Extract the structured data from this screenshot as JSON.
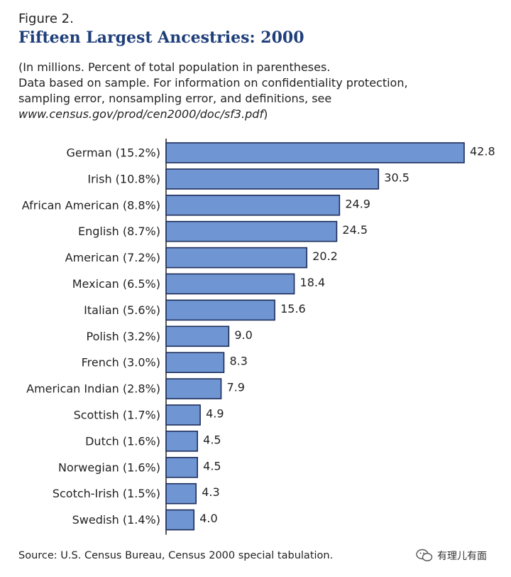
{
  "figure_label": "Figure 2.",
  "title": "Fifteen Largest Ancestries: 2000",
  "subtitle_lines": [
    "(In millions. Percent of total population in parentheses.",
    "Data based on sample.  For information on confidentiality protection,",
    "sampling error, nonsampling error, and definitions, see"
  ],
  "subtitle_url": "www.census.gov/prod/cen2000/doc/sf3.pdf",
  "subtitle_close": ")",
  "source": "Source:  U.S. Census Bureau, Census 2000 special tabulation.",
  "watermark": {
    "icon": "wechat-bubble-icon",
    "text": "有理儿有面"
  },
  "colors": {
    "bar_fill": "#6f96d3",
    "bar_stroke": "#1e2d5a",
    "title": "#1f3f7a",
    "axis": "#222222"
  },
  "chart_data": {
    "type": "bar",
    "orientation": "horizontal",
    "categories": [
      "German (15.2%)",
      "Irish (10.8%)",
      "African American (8.8%)",
      "English (8.7%)",
      "American (7.2%)",
      "Mexican (6.5%)",
      "Italian (5.6%)",
      "Polish (3.2%)",
      "French (3.0%)",
      "American Indian (2.8%)",
      "Scottish (1.7%)",
      "Dutch (1.6%)",
      "Norwegian (1.6%)",
      "Scotch-Irish (1.5%)",
      "Swedish  (1.4%)"
    ],
    "values": [
      42.8,
      30.5,
      24.9,
      24.5,
      20.2,
      18.4,
      15.6,
      9.0,
      8.3,
      7.9,
      4.9,
      4.5,
      4.5,
      4.3,
      4.0
    ],
    "value_labels": [
      "42.8",
      "30.5",
      "24.9",
      "24.5",
      "20.2",
      "18.4",
      "15.6",
      "9.0",
      "8.3",
      "7.9",
      "4.9",
      "4.5",
      "4.5",
      "4.3",
      "4.0"
    ],
    "xlim": [
      0,
      42.8
    ],
    "title": "Fifteen Largest Ancestries: 2000",
    "xlabel": "",
    "ylabel": "",
    "grid": false,
    "legend": "none"
  }
}
